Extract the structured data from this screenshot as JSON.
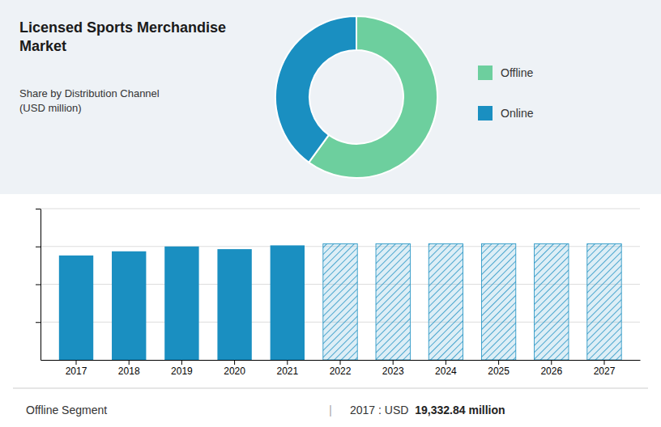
{
  "chart_data": [
    {
      "type": "donut",
      "title": "Licensed Sports Merchandise\nMarket",
      "subtitle": "Share by Distribution Channel\n(USD million)",
      "categories": [
        "Offline",
        "Online"
      ],
      "values": [
        60,
        40
      ],
      "colors": [
        "#6dcf9e",
        "#1a8fc1"
      ],
      "legend": "right"
    },
    {
      "type": "bar",
      "categories": [
        "2017",
        "2018",
        "2019",
        "2020",
        "2021",
        "2022",
        "2023",
        "2024",
        "2025",
        "2026",
        "2027"
      ],
      "series": [
        {
          "color": "#1a8fc1",
          "values": [
            19332,
            20100,
            21000,
            20500,
            21200,
            0,
            0,
            0,
            0,
            0,
            0
          ]
        },
        {
          "color": "#1a8fc1",
          "values": [
            0,
            0,
            0,
            0,
            0,
            21500,
            21500,
            21500,
            21500,
            21500,
            21500
          ]
        }
      ],
      "ylim": [
        0,
        28000
      ],
      "yticks": [
        7000,
        14000,
        21000,
        28000
      ],
      "grid": true,
      "tick_labels": "x",
      "annotations": [
        "Offline Segment",
        "|",
        "2017 : USD ",
        "19,332.84 million"
      ]
    }
  ]
}
